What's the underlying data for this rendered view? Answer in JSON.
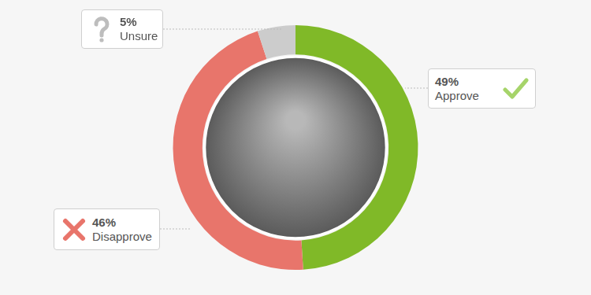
{
  "chart_data": {
    "type": "doughnut",
    "categories": [
      "Approve",
      "Disapprove",
      "Unsure"
    ],
    "values": [
      49,
      46,
      5
    ],
    "value_labels": [
      "49%",
      "46%",
      "5%"
    ],
    "colors": [
      "#80b928",
      "#e8756b",
      "#cccccc"
    ],
    "data_labels": true,
    "legend": false
  }
}
